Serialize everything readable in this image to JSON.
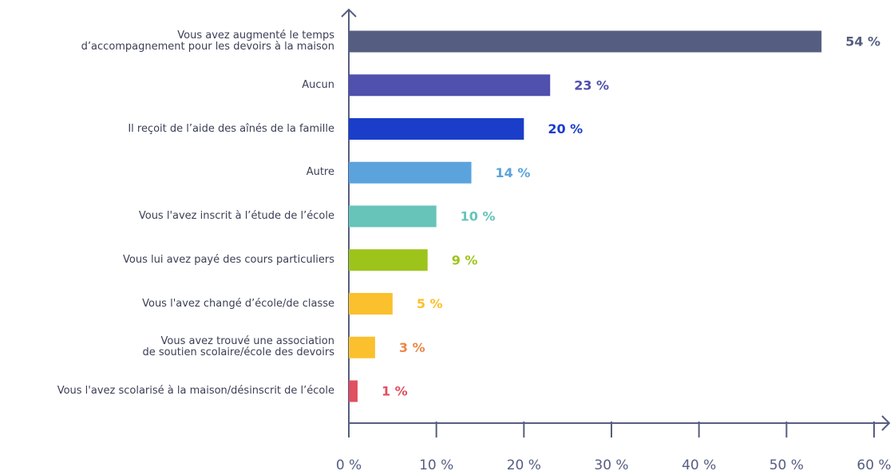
{
  "chart_data": {
    "type": "bar",
    "orientation": "horizontal",
    "categories": [
      "Vous avez augmenté le temps\nd’accompagnement pour les devoirs à la maison",
      "Aucun",
      "Il reçoit de l’aide des aînés de la famille",
      "Autre",
      "Vous l'avez inscrit à l’étude de l’école",
      "Vous lui avez payé des cours particuliers",
      "Vous l'avez changé d’école/de classe",
      "Vous avez trouvé une association\nde soutien scolaire/école des devoirs",
      "Vous l'avez scolarisé à la maison/désinscrit de l’école"
    ],
    "values": [
      54,
      23,
      20,
      14,
      10,
      9,
      5,
      3,
      1
    ],
    "value_labels": [
      "54 %",
      "23 %",
      "20 %",
      "14 %",
      "10 %",
      "9 %",
      "5 %",
      "3 %",
      "1 %"
    ],
    "colors": [
      "#555e80",
      "#5050ae",
      "#1a3ec9",
      "#5ba3dc",
      "#67c4b9",
      "#9dc41a",
      "#fbc02d",
      "#fbc02d",
      "#e05060"
    ],
    "label_colors": [
      "#555e80",
      "#5050ae",
      "#1a3ec9",
      "#5ba3dc",
      "#67c4b9",
      "#9dc41a",
      "#fbc02d",
      "#e8884a",
      "#e05060"
    ],
    "xlim": [
      0,
      60
    ],
    "xticks": [
      {
        "value": 0,
        "label": "0 %"
      },
      {
        "value": 10,
        "label": "10 %"
      },
      {
        "value": 20,
        "label": "20 %"
      },
      {
        "value": 30,
        "label": "30 %"
      },
      {
        "value": 40,
        "label": "40 %"
      },
      {
        "value": 50,
        "label": "50 %"
      },
      {
        "value": 60,
        "label": "60 %"
      }
    ]
  }
}
